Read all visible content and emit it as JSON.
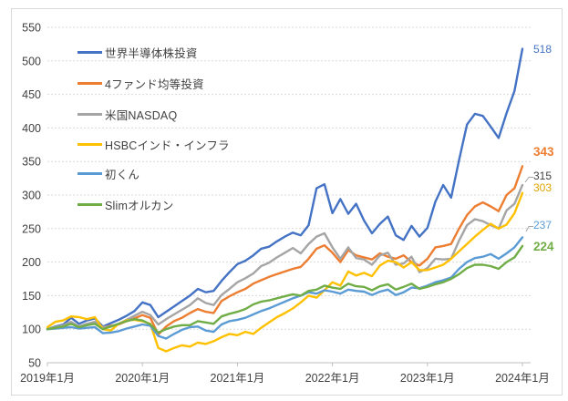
{
  "chart_data": {
    "type": "line",
    "title": "",
    "xlabel": "",
    "ylabel": "",
    "grid": true,
    "legend_position": "top-left",
    "y_axis": {
      "min": 50,
      "max": 550,
      "step": 50
    },
    "y_tick_labels": [
      "50",
      "100",
      "150",
      "200",
      "250",
      "300",
      "350",
      "400",
      "450",
      "500",
      "550"
    ],
    "x_tick_labels": [
      "2019年1月",
      "2020年1月",
      "2021年1月",
      "2022年1月",
      "2023年1月",
      "2024年1月"
    ],
    "x_frequency": "monthly",
    "x_range": "2019-01 to 2024-01",
    "axis_text_color": "#404040",
    "gridline_color": "#D9D9D9",
    "axis_line_color": "#BFBFBF",
    "series": [
      {
        "key": "semiconductor",
        "name": "世界半導体株投資",
        "color": "#4472C4",
        "end_label": "518",
        "end_label_bold": false,
        "values": [
          100,
          104,
          107,
          117,
          108,
          113,
          116,
          104,
          109,
          114,
          120,
          127,
          140,
          136,
          118,
          126,
          134,
          142,
          150,
          160,
          155,
          157,
          172,
          185,
          197,
          202,
          210,
          220,
          223,
          231,
          238,
          244,
          240,
          255,
          310,
          316,
          273,
          294,
          272,
          287,
          262,
          243,
          257,
          268,
          240,
          233,
          254,
          238,
          251,
          290,
          315,
          296,
          352,
          405,
          421,
          418,
          402,
          385,
          422,
          455,
          518
        ]
      },
      {
        "key": "four-fund",
        "name": "4ファンド均等投資",
        "color": "#ED7D31",
        "end_label": "343",
        "end_label_bold": true,
        "values": [
          100,
          103,
          105,
          108,
          104,
          107,
          109,
          103,
          105,
          107,
          112,
          116,
          121,
          117,
          92,
          104,
          112,
          117,
          124,
          130,
          126,
          124,
          142,
          149,
          155,
          160,
          168,
          173,
          178,
          182,
          186,
          190,
          193,
          205,
          220,
          225,
          214,
          200,
          218,
          210,
          207,
          204,
          213,
          208,
          205,
          210,
          200,
          195,
          205,
          222,
          224,
          227,
          250,
          270,
          283,
          289,
          283,
          276,
          300,
          310,
          343
        ]
      },
      {
        "key": "nasdaq",
        "name": "米国NASDAQ",
        "color": "#A5A5A5",
        "end_label": "315",
        "end_label_bold": false,
        "end_label_color": "#404040",
        "values": [
          100,
          103,
          106,
          111,
          104,
          108,
          111,
          103,
          104,
          108,
          114,
          120,
          126,
          121,
          107,
          115,
          122,
          129,
          136,
          146,
          139,
          136,
          151,
          160,
          170,
          176,
          183,
          194,
          199,
          207,
          214,
          221,
          213,
          227,
          238,
          243,
          222,
          205,
          222,
          206,
          204,
          196,
          210,
          214,
          196,
          198,
          208,
          185,
          191,
          205,
          204,
          205,
          232,
          255,
          264,
          261,
          255,
          250,
          277,
          287,
          315
        ]
      },
      {
        "key": "hsbc-india-infra",
        "name": "HSBCインド・インフラ",
        "color": "#FFC000",
        "end_label": "303",
        "end_label_bold": false,
        "end_label_color": "#E0A400",
        "values": [
          103,
          111,
          113,
          119,
          118,
          115,
          118,
          100,
          98,
          108,
          113,
          114,
          112,
          108,
          72,
          67,
          72,
          76,
          74,
          80,
          78,
          82,
          88,
          93,
          91,
          96,
          93,
          102,
          110,
          118,
          124,
          131,
          140,
          150,
          147,
          158,
          170,
          165,
          186,
          180,
          184,
          179,
          195,
          202,
          200,
          192,
          200,
          188,
          188,
          192,
          196,
          205,
          216,
          227,
          238,
          248,
          257,
          250,
          256,
          273,
          303
        ]
      },
      {
        "key": "hatsu-kun",
        "name": "初くん",
        "color": "#5B9BD5",
        "end_label": "237",
        "end_label_bold": false,
        "values": [
          100,
          101,
          102,
          103,
          101,
          102,
          103,
          94,
          95,
          97,
          101,
          104,
          107,
          105,
          90,
          86,
          93,
          99,
          103,
          104,
          98,
          96,
          107,
          112,
          114,
          117,
          122,
          127,
          131,
          136,
          141,
          146,
          150,
          155,
          153,
          158,
          156,
          153,
          159,
          157,
          156,
          151,
          156,
          159,
          151,
          155,
          162,
          161,
          165,
          170,
          173,
          177,
          190,
          200,
          206,
          208,
          212,
          205,
          213,
          222,
          237
        ]
      },
      {
        "key": "slim-allcountry",
        "name": "Slimオルカン",
        "color": "#70AD47",
        "end_label": "224",
        "end_label_bold": true,
        "values": [
          100,
          102,
          104,
          108,
          103,
          106,
          108,
          100,
          104,
          108,
          112,
          115,
          113,
          107,
          95,
          100,
          104,
          106,
          106,
          112,
          110,
          108,
          119,
          123,
          126,
          130,
          137,
          141,
          143,
          146,
          149,
          152,
          150,
          157,
          159,
          165,
          162,
          160,
          168,
          164,
          163,
          158,
          164,
          167,
          159,
          163,
          168,
          160,
          163,
          167,
          170,
          175,
          182,
          191,
          196,
          196,
          194,
          190,
          200,
          207,
          224
        ]
      }
    ]
  }
}
